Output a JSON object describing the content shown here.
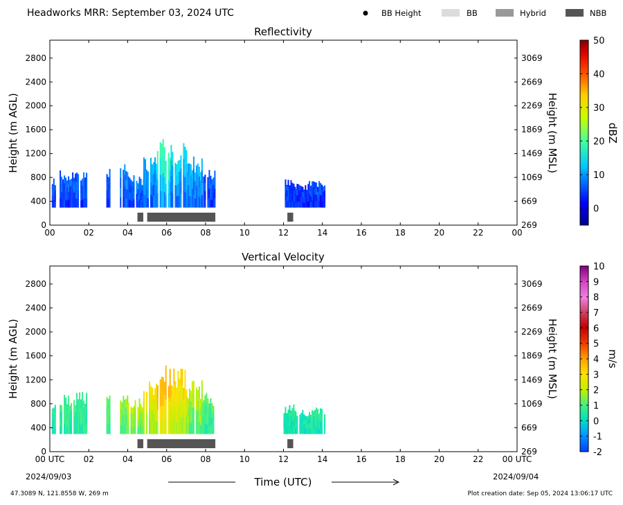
{
  "header": {
    "title": "Headworks MRR:  September 03, 2024 UTC",
    "legend": [
      {
        "label": "BB Height",
        "kind": "dot",
        "color": "#000000"
      },
      {
        "label": "BB",
        "kind": "bar",
        "color": "#dcdcdc"
      },
      {
        "label": "Hybrid",
        "kind": "bar",
        "color": "#999999"
      },
      {
        "label": "NBB",
        "kind": "bar",
        "color": "#555555"
      }
    ]
  },
  "footer": {
    "location": "47.3089 N, 121.8558 W, 269 m",
    "creation": "Plot creation date: Sep 05, 2024 13:06:17 UTC",
    "xlabel": "Time (UTC)",
    "start_date": "2024/09/03",
    "end_date": "2024/09/04"
  },
  "chart_data": [
    {
      "type": "heatmap",
      "title": "Reflectivity",
      "xlabel": "Time (UTC)",
      "ylabel": "Height (m AGL)",
      "ylabel_right": "Height (m MSL)",
      "x_ticks": [
        "00",
        "02",
        "04",
        "06",
        "08",
        "10",
        "12",
        "14",
        "16",
        "18",
        "20",
        "22",
        "00"
      ],
      "xlim": [
        0,
        24
      ],
      "ylim": [
        0,
        3100
      ],
      "y_ticks_left": [
        0,
        400,
        800,
        1200,
        1600,
        2000,
        2400,
        2800
      ],
      "y_ticks_right": [
        269,
        669,
        1069,
        1469,
        1869,
        2269,
        2669,
        3069
      ],
      "colorbar": {
        "label": "dBZ",
        "min": -5,
        "max": 50,
        "ticks": [
          0,
          10,
          20,
          30,
          40,
          50
        ]
      },
      "echo_segments": [
        {
          "start": 0.1,
          "end": 0.3,
          "top": 800,
          "level": 3
        },
        {
          "start": 0.5,
          "end": 1.9,
          "top": 950,
          "level": 4
        },
        {
          "start": 2.9,
          "end": 3.05,
          "top": 950,
          "level": 4
        },
        {
          "start": 3.6,
          "end": 4.0,
          "top": 1100,
          "level": 6
        },
        {
          "start": 4.0,
          "end": 4.8,
          "top": 850,
          "level": 5
        },
        {
          "start": 4.8,
          "end": 5.5,
          "top": 1200,
          "level": 8
        },
        {
          "start": 5.5,
          "end": 6.2,
          "top": 1450,
          "level": 14
        },
        {
          "start": 6.2,
          "end": 7.0,
          "top": 1400,
          "level": 10
        },
        {
          "start": 7.0,
          "end": 7.8,
          "top": 1200,
          "level": 8
        },
        {
          "start": 7.8,
          "end": 8.5,
          "top": 950,
          "level": 4
        },
        {
          "start": 12.0,
          "end": 12.6,
          "top": 800,
          "level": 3
        },
        {
          "start": 12.6,
          "end": 13.3,
          "top": 700,
          "level": 2
        },
        {
          "start": 13.3,
          "end": 14.1,
          "top": 750,
          "level": 3
        }
      ],
      "bb_bars": [
        {
          "start": 4.5,
          "end": 4.8,
          "type": "NBB"
        },
        {
          "start": 5.0,
          "end": 8.5,
          "type": "NBB"
        },
        {
          "start": 12.2,
          "end": 12.5,
          "type": "NBB"
        }
      ]
    },
    {
      "type": "heatmap",
      "title": "Vertical Velocity",
      "xlabel": "Time (UTC)",
      "ylabel": "Height (m AGL)",
      "ylabel_right": "Height (m MSL)",
      "x_ticks": [
        "00 UTC",
        "02",
        "04",
        "06",
        "08",
        "10",
        "12",
        "14",
        "16",
        "18",
        "20",
        "22",
        "00 UTC"
      ],
      "xlim": [
        0,
        24
      ],
      "ylim": [
        0,
        3100
      ],
      "y_ticks_left": [
        0,
        400,
        800,
        1200,
        1600,
        2000,
        2400,
        2800
      ],
      "y_ticks_right": [
        269,
        669,
        1069,
        1469,
        1869,
        2269,
        2669,
        3069
      ],
      "colorbar": {
        "label": "m/s",
        "min": -2,
        "max": 10,
        "ticks": [
          -2,
          -1,
          0,
          1,
          2,
          3,
          4,
          5,
          6,
          7,
          8,
          9,
          10
        ]
      },
      "echo_segments": [
        {
          "start": 0.1,
          "end": 0.3,
          "top": 800,
          "level": 0.5
        },
        {
          "start": 0.5,
          "end": 1.9,
          "top": 1000,
          "level": 0.8
        },
        {
          "start": 2.9,
          "end": 3.05,
          "top": 950,
          "level": 1.2
        },
        {
          "start": 3.6,
          "end": 4.0,
          "top": 1100,
          "level": 1.5
        },
        {
          "start": 4.0,
          "end": 4.8,
          "top": 900,
          "level": 1.8
        },
        {
          "start": 4.8,
          "end": 5.5,
          "top": 1200,
          "level": 2.5
        },
        {
          "start": 5.5,
          "end": 6.2,
          "top": 1500,
          "level": 3.5
        },
        {
          "start": 6.2,
          "end": 7.0,
          "top": 1400,
          "level": 2.8
        },
        {
          "start": 7.0,
          "end": 7.8,
          "top": 1200,
          "level": 1.8
        },
        {
          "start": 7.8,
          "end": 8.5,
          "top": 1000,
          "level": 1.0
        },
        {
          "start": 12.0,
          "end": 12.6,
          "top": 800,
          "level": 0.4
        },
        {
          "start": 12.6,
          "end": 13.3,
          "top": 700,
          "level": 0.3
        },
        {
          "start": 13.3,
          "end": 14.1,
          "top": 750,
          "level": 0.4
        }
      ],
      "bb_bars": [
        {
          "start": 4.5,
          "end": 4.8,
          "type": "NBB"
        },
        {
          "start": 5.0,
          "end": 8.5,
          "type": "NBB"
        },
        {
          "start": 12.2,
          "end": 12.5,
          "type": "NBB"
        }
      ]
    }
  ]
}
